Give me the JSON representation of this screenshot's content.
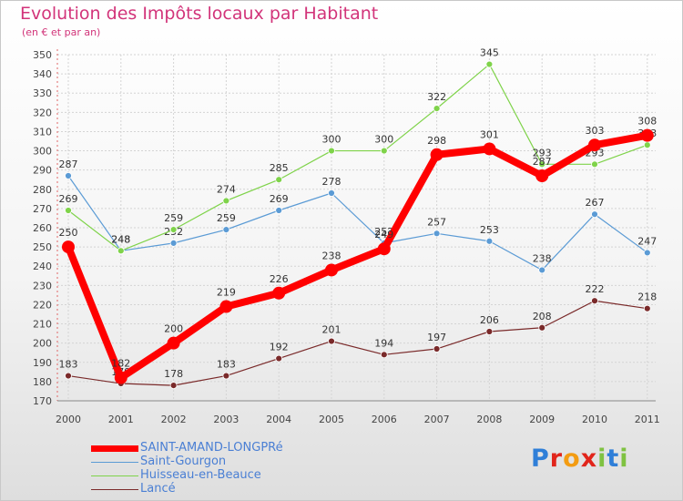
{
  "header": {
    "title": "Evolution des Impôts locaux par Habitant",
    "subtitle": "(en € et par an)"
  },
  "chart_data": {
    "type": "line",
    "title": "Evolution des Impôts locaux par Habitant",
    "subtitle": "(en € et par an)",
    "x": [
      "2000",
      "2001",
      "2002",
      "2003",
      "2004",
      "2005",
      "2006",
      "2007",
      "2008",
      "2009",
      "2010",
      "2011"
    ],
    "ylim": [
      170,
      350
    ],
    "yticks": [
      170,
      180,
      190,
      200,
      210,
      220,
      230,
      240,
      250,
      260,
      270,
      280,
      290,
      300,
      310,
      320,
      330,
      340,
      350
    ],
    "grid": true,
    "legend_position": "bottom-left",
    "series": [
      {
        "name": "SAINT-AMAND-LONGPRé",
        "color": "#ff0000",
        "values": [
          250,
          182,
          200,
          219,
          226,
          238,
          249,
          298,
          301,
          287,
          303,
          308
        ]
      },
      {
        "name": "Saint-Gourgon",
        "color": "#5b9bd5",
        "values": [
          287,
          248,
          252,
          259,
          269,
          278,
          252,
          257,
          253,
          238,
          267,
          247
        ]
      },
      {
        "name": "Huisseau-en-Beauce",
        "color": "#7fd34a",
        "values": [
          269,
          248,
          259,
          274,
          285,
          300,
          300,
          322,
          345,
          293,
          293,
          303
        ]
      },
      {
        "name": "Lancé",
        "color": "#7a2a2a",
        "values": [
          183,
          179,
          178,
          183,
          192,
          201,
          194,
          197,
          206,
          208,
          222,
          218
        ]
      }
    ]
  },
  "legend": {
    "items": [
      {
        "label": "SAINT-AMAND-LONGPRé",
        "color": "#ff0000"
      },
      {
        "label": "Saint-Gourgon",
        "color": "#5b9bd5"
      },
      {
        "label": "Huisseau-en-Beauce",
        "color": "#7fd34a"
      },
      {
        "label": "Lancé",
        "color": "#7a2a2a"
      }
    ]
  },
  "logo": {
    "text": "Proxiti",
    "letters": [
      "P",
      "r",
      "o",
      "x",
      "i",
      "t",
      "i"
    ],
    "letter_colors": [
      "#2f7fd8",
      "#e1251b",
      "#f39c12",
      "#e1251b",
      "#7fc241",
      "#2f7fd8",
      "#7fc241"
    ]
  }
}
